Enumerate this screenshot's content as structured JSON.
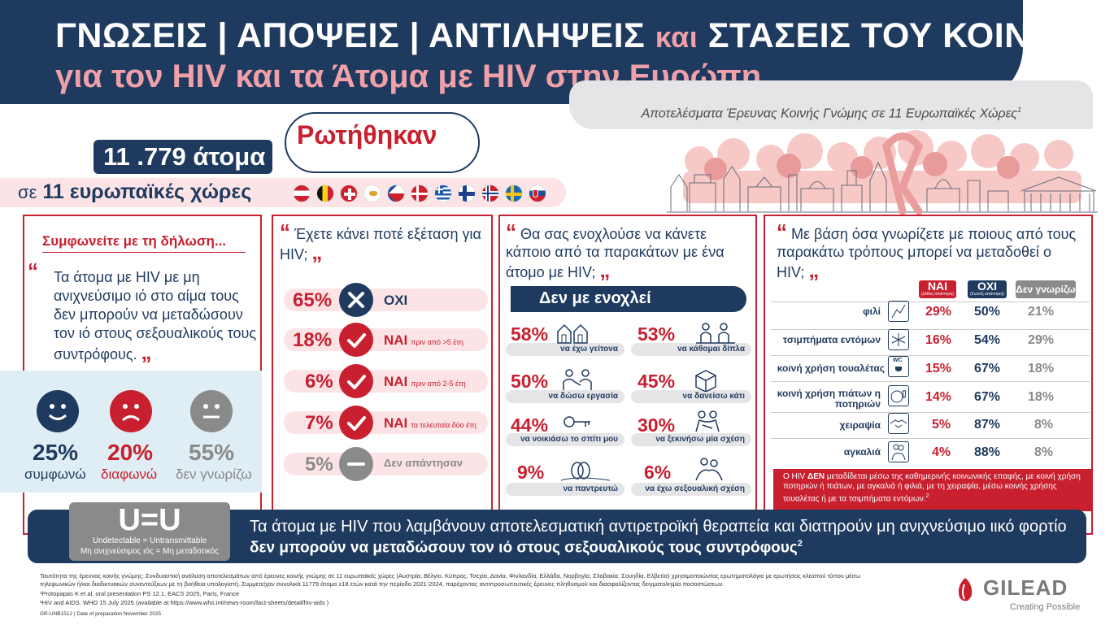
{
  "header": {
    "title_line1_a": "ΓΝΩΣΕΙΣ | ΑΠΟΨΕΙΣ | ΑΝΤΙΛΗΨΕΙΣ",
    "title_line1_kai": "και",
    "title_line1_b": "ΣΤΑΣΕΙΣ ΤΟΥ ΚΟΙΝΟΥ",
    "title_line2": "για τον HIV  και τα Άτομα με HIV στην Ευρώπη.",
    "subtitle": "Αποτελέσματα Έρευνας Κοινής Γνώμης σε 11 Ευρωπαϊκές Χώρες",
    "subtitle_sup": "1"
  },
  "survey": {
    "asked": "Ρωτήθηκαν",
    "people": "11 .779 άτομα",
    "countries_prefix": "σε",
    "countries": "11 ευρωπαϊκές χώρες",
    "flags": [
      "austria-flag",
      "belgium-flag",
      "switzerland-flag",
      "cyprus-flag",
      "czechia-flag",
      "denmark-flag",
      "greece-flag",
      "finland-flag",
      "norway-flag",
      "sweden-flag",
      "slovakia-flag"
    ]
  },
  "panel1": {
    "heading": "Συμφωνείτε με τη δήλωση...",
    "quote_open": "“",
    "statement": "Τα άτομα με HIV με μη ανιχνεύσιμο ιό στο αίμα τους δεν μπορούν να μεταδώσουν τον ιό στους σεξουαλικούς τους συντρόφους.",
    "quote_close": "„",
    "results": [
      {
        "pct": "25%",
        "label": "συμφωνώ",
        "color": "#1f3a5f",
        "icon": "smile-face-icon"
      },
      {
        "pct": "20%",
        "label": "διαφωνώ",
        "color": "#c8202f",
        "icon": "sad-face-icon"
      },
      {
        "pct": "55%",
        "label": "δεν γνωρίζω",
        "color": "#8a8a8a",
        "icon": "neutral-face-icon"
      }
    ]
  },
  "panel2": {
    "quote_open": "“",
    "question": "Έχετε κάνει ποτέ εξέταση για HIV;",
    "quote_close": "„",
    "rows": [
      {
        "pct": "65%",
        "answer": "ΟΧΙ",
        "detail": "",
        "icon": "x-circle-icon"
      },
      {
        "pct": "18%",
        "answer": "ΝΑΙ",
        "detail": "πριν από >5 έτη",
        "icon": "check-circle-icon"
      },
      {
        "pct": "6%",
        "answer": "ΝΑΙ",
        "detail": "πριν από 2-5 έτη",
        "icon": "check-circle-icon"
      },
      {
        "pct": "7%",
        "answer": "ΝΑΙ",
        "detail": "τα τελευταία δύο έτη",
        "icon": "check-circle-icon"
      },
      {
        "pct": "5%",
        "answer": "Δεν απάντησαν",
        "detail": "",
        "icon": "minus-circle-icon"
      }
    ]
  },
  "panel3": {
    "quote_open": "“",
    "question": "Θα σας ενοχλούσε να κάνετε κάποιο από τα παρακάτων με ένα άτομο με HIV;",
    "quote_close": "„",
    "banner": "Δεν με ενοχλεί",
    "items": [
      {
        "pct": "58%",
        "label": "να έχω γείτονα",
        "icon": "houses-icon"
      },
      {
        "pct": "53%",
        "label": "να κάθομαι δίπλα",
        "icon": "seated-people-icon"
      },
      {
        "pct": "50%",
        "label": "να δώσω εργασία",
        "icon": "handshake-work-icon"
      },
      {
        "pct": "45%",
        "label": "να δανείσω κάτι",
        "icon": "box-icon"
      },
      {
        "pct": "44%",
        "label": "να νοικιάσω το σπίτι μου",
        "icon": "keys-icon"
      },
      {
        "pct": "30%",
        "label": "να ξεκινήσω μία σχέση",
        "icon": "couple-icon"
      },
      {
        "pct": "9%",
        "label": "να παντρευτώ",
        "icon": "rings-icon"
      },
      {
        "pct": "6%",
        "label": "να έχω σεξουαλική σχέση",
        "icon": "intimate-couple-icon"
      }
    ]
  },
  "panel4": {
    "quote_open": "“",
    "question": "Με βάση όσα γνωρίζετε με ποιους από τους παρακάτω τρόπους μπορεί να μεταδοθεί ο HIV;",
    "quote_close": "„",
    "col_yes": "ΝΑΙ",
    "col_yes_sub": "(λάθος απάντηση)",
    "col_no": "ΟΧΙ",
    "col_no_sub": "(Σωστή απάντηση)",
    "col_dk": "Δεν γνωρίζω",
    "rows": [
      {
        "label": "φιλί",
        "yes": "29%",
        "no": "50%",
        "dk": "21%",
        "icon": "kiss-icon"
      },
      {
        "label": "τσιμπήματα εντόμων",
        "yes": "16%",
        "no": "54%",
        "dk": "29%",
        "icon": "mosquito-icon"
      },
      {
        "label": "κοινή χρήση τουαλέτας",
        "yes": "15%",
        "no": "67%",
        "dk": "18%",
        "icon": "toilet-icon",
        "icon_text": "WC"
      },
      {
        "label": "κοινή χρήση πιάτων η ποτηριών",
        "yes": "14%",
        "no": "67%",
        "dk": "18%",
        "icon": "plate-glass-icon"
      },
      {
        "label": "χειραψία",
        "yes": "5%",
        "no": "87%",
        "dk": "8%",
        "icon": "handshake-icon"
      },
      {
        "label": "αγκαλιά",
        "yes": "4%",
        "no": "88%",
        "dk": "8%",
        "icon": "hug-icon"
      }
    ],
    "note_pre": "Ο HIV ",
    "note_bold": "ΔΕΝ",
    "note_post": " μεταδίδεται μέσω της καθημερινής κοινωνικής επαφής, με κοινή χρήση ποτηριών ή πιάτων, με  αγκαλιά ή φιλιά, με τη χειραψία, μέσω  κοινής χρήσης τουαλέτας ή  με τα τσιμπήματα εντόμων.",
    "note_sup": "2"
  },
  "bottom": {
    "ueq": "U=U",
    "ueq_en": "Undetectable = Untransmittable",
    "ueq_gr": "Μη ανιχνεύσιμος ιός = Μη μεταδοτικός",
    "line1": "Τα άτομα με HIV που λαμβάνουν αποτελεσματική αντιρετροϊκή θεραπεία και διατηρούν μη ανιχνεύσιμο ιικό φορτίο",
    "line2": "δεν μπορούν να μεταδώσουν τον ιό στους σεξουαλικούς τους συντρόφους",
    "line2_sup": "2"
  },
  "footnotes": {
    "f1": "Ταυτότητα της έρευνας κοινής γνώμης: Συνδυαστική ανάλυση αποτελεσμάτων από  έρευνες κοινής γνώμης  σε 11 ευρωπαϊκές χώρες (Αυστρία, Βέλγιο, Κύπρος, Τσεχία, Δανία, Φινλανδία, Ελλάδα, Νορβηγία, Σλοβακία, Σουηδία, Ελβετία) χρησιμοποιώντας ερωτηματολόγιο με ερωτήσεις κλειστού τύπου μέσω",
    "f2": "τηλεφωνικών ή/και διαδικτυακών συνεντεύξεων με τη βοήθεια υπολογιστή. Συμμετείχαν συνολικά 11779 άτομα ≥18 ετών κατά την περίοδο 2021-2024, παρέχοντας αντιπροσωπευτικές έρευνες πληθυσμού και διασφαλίζοντας δειγματοληψία ποσοστώσεων.",
    "f3": "¹Protopapas K et al, oral presentation PS 12.1, EACS 2025, Paris, France",
    "f4": "²HIV and AIDS. WHO 15 July 2025 (available at https://www.who.int/news-room/fact-sheets/detail/hiv-aids )",
    "f5": "GR-UNB1512 | Date of preparation November 2025"
  },
  "logo": {
    "name": "GILEAD",
    "tagline": "Creating Possible"
  }
}
